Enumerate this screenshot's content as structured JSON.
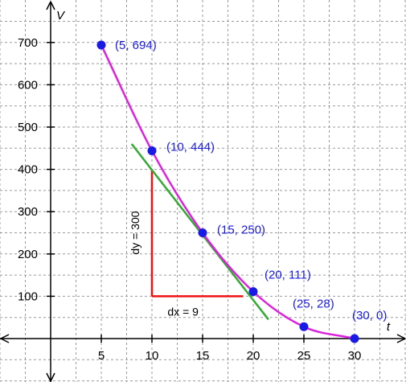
{
  "chart_data": {
    "type": "line",
    "title": "",
    "xlabel": "t",
    "ylabel": "V",
    "xlim": [
      -5,
      35
    ],
    "ylim": [
      -100,
      750
    ],
    "x_ticks": [
      5,
      10,
      15,
      20,
      25,
      30
    ],
    "y_ticks": [
      100,
      200,
      300,
      400,
      500,
      600,
      700
    ],
    "grid": true,
    "series": [
      {
        "points": [
          {
            "x": 5,
            "y": 694,
            "label": "(5, 694)"
          },
          {
            "x": 10,
            "y": 444,
            "label": "(10, 444)"
          },
          {
            "x": 15,
            "y": 250,
            "label": "(15, 250)"
          },
          {
            "x": 20,
            "y": 111,
            "label": "(20, 111)"
          },
          {
            "x": 25,
            "y": 28,
            "label": "(25, 28)"
          },
          {
            "x": 30,
            "y": 0,
            "label": "(30, 0)"
          }
        ]
      }
    ],
    "tangent_line": {
      "from": [
        8,
        460
      ],
      "to": [
        21.5,
        45
      ]
    },
    "slope_triangle": {
      "vertical": {
        "x": 10,
        "y_from": 400,
        "y_to": 100,
        "label": "dy = 300"
      },
      "horizontal": {
        "y": 100,
        "x_from": 10,
        "x_to": 19,
        "label": "dx = 9"
      }
    },
    "colors": {
      "curve": "#dd22dd",
      "points": "#1a1ae6",
      "point_labels": "#1a1ae6",
      "tangent": "#33aa33",
      "triangle": "#ee1111",
      "grid": "#999999",
      "axes": "#000000"
    }
  }
}
